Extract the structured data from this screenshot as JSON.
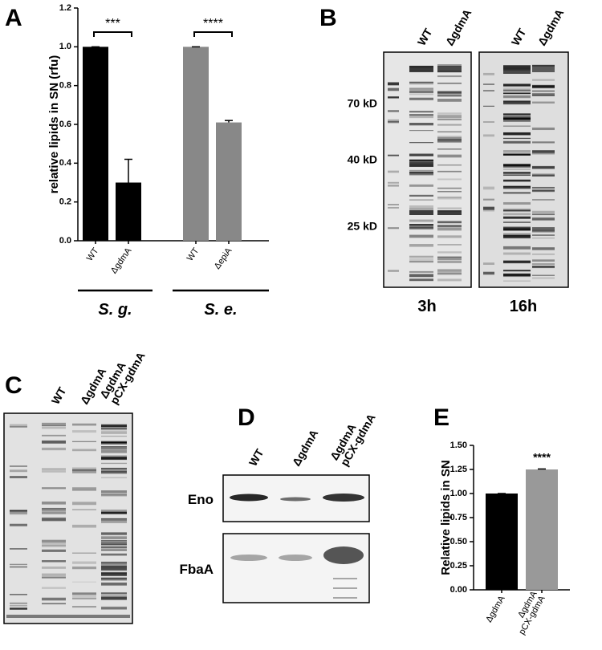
{
  "chart_data": [
    {
      "type": "bar",
      "panel": "A",
      "ylabel": "relative lipids in SN (rfu)",
      "categories": [
        "WT",
        "ΔgdmA",
        "WT",
        "ΔepiA"
      ],
      "values": [
        1.0,
        0.3,
        1.0,
        0.61
      ],
      "errors": [
        0,
        0.12,
        0,
        0.01
      ],
      "colors": [
        "#000000",
        "#000000",
        "#888888",
        "#888888"
      ],
      "ylim": [
        0,
        1.2
      ],
      "yticks": [
        {
          "value": 0,
          "label": "0.0"
        },
        0.2,
        0.4,
        0.6,
        0.8,
        {
          "value": 1,
          "label": "1.0"
        },
        1.2
      ],
      "annotations": [
        "***",
        "****"
      ],
      "groups": [
        "S. g.",
        "S. e."
      ]
    },
    {
      "type": "bar",
      "panel": "E",
      "ylabel": "Relative lipids in SN",
      "categories": [
        "ΔgdmA",
        [
          "ΔgdmA",
          "pCX-gdmA"
        ]
      ],
      "values": [
        1.0,
        1.25
      ],
      "errors": [
        0,
        0.005
      ],
      "colors": [
        "#000000",
        "#999999"
      ],
      "ylim": [
        0,
        1.5
      ],
      "yticks": [
        {
          "value": 0,
          "label": "0.00"
        },
        {
          "value": 0.25,
          "label": "0.25"
        },
        {
          "value": 0.5,
          "label": "0.50"
        },
        {
          "value": 0.75,
          "label": "0.75"
        },
        {
          "value": 1,
          "label": "1.00"
        },
        {
          "value": 1.25,
          "label": "1.25"
        },
        {
          "value": 1.5,
          "label": "1.50"
        }
      ],
      "annotations": [
        "****"
      ]
    }
  ],
  "gel_b": {
    "letter": "B",
    "lanes": [
      "WT",
      "ΔgdmA"
    ],
    "markers": [
      "70 kD",
      "40 kD",
      "25 kD"
    ],
    "times": [
      "3h",
      "16h"
    ]
  },
  "gel_c": {
    "letter": "C",
    "lanes": [
      "WT",
      "ΔgdmA",
      [
        "ΔgdmA",
        "pCX-gdmA"
      ]
    ]
  },
  "blot_d": {
    "letter": "D",
    "lanes": [
      "WT",
      "ΔgdmA",
      [
        "ΔgdmA",
        "pCX-gdmA"
      ]
    ],
    "blots": [
      "Eno",
      "FbaA"
    ]
  }
}
